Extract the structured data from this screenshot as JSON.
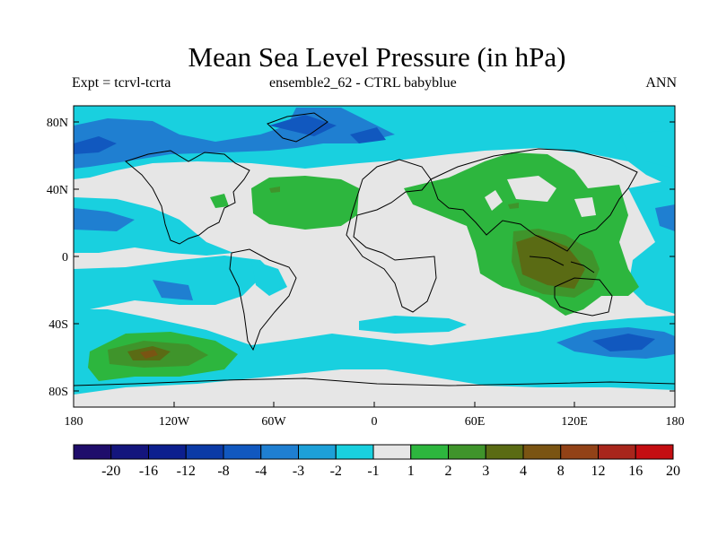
{
  "title": "Mean Sea Level Pressure (in hPa)",
  "subtitle_left": "Expt = tcrvl-tcrta",
  "subtitle_center": "ensemble2_62 - CTRL babyblue",
  "subtitle_right": "ANN",
  "y_ticks": [
    "80N",
    "40N",
    "0",
    "40S",
    "80S"
  ],
  "x_ticks": [
    "180",
    "120W",
    "60W",
    "0",
    "60E",
    "120E",
    "180"
  ],
  "colorbar": {
    "colors": [
      "#1f0d6b",
      "#14157d",
      "#0c1f8e",
      "#0b3aa6",
      "#1158bf",
      "#1f7fd1",
      "#1da0d8",
      "#19d0df",
      "#e6e6e6",
      "#2db63e",
      "#3f942b",
      "#5a6b14",
      "#7a5413",
      "#924217",
      "#a8261c",
      "#c40e12"
    ],
    "labels": [
      "-20",
      "-16",
      "-12",
      "-8",
      "-4",
      "-3",
      "-2",
      "-1",
      "1",
      "2",
      "3",
      "4",
      "8",
      "12",
      "16",
      "20"
    ]
  },
  "colors": {
    "neg_deep": "#1158bf",
    "neg_mid": "#1f7fd1",
    "neg_light": "#19d0df",
    "neutral": "#e6e6e6",
    "pos_light": "#2db63e",
    "pos_mid": "#3f942b",
    "pos_dark": "#5a6b14",
    "pos_darker": "#7a5413"
  }
}
